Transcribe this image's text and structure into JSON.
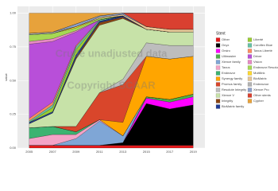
{
  "chart_data": {
    "type": "stacked_area",
    "y_label": "value",
    "legend_title": "Stent",
    "annotations": [
      "Crude unadjusted data",
      "Copyright SCAAR"
    ],
    "x": [
      2005,
      2007,
      2009,
      2011,
      2013,
      2015,
      2017,
      2019
    ],
    "xlim": [
      2004,
      2020
    ],
    "xticks": [
      2005,
      2007,
      2009,
      2011,
      2013,
      2015,
      2017,
      2019
    ],
    "ylim": [
      0,
      1.05
    ],
    "yticks": [
      {
        "value": 0,
        "label": "0.00"
      },
      {
        "value": 0.25,
        "label": "0.25"
      },
      {
        "value": 0.5,
        "label": "0.50"
      },
      {
        "value": 0.75,
        "label": "0.75"
      },
      {
        "value": 1,
        "label": "1.00"
      }
    ],
    "grid": true,
    "series": [
      {
        "name": "Other",
        "color": "#e41a1c",
        "values": [
          0.02,
          0.02,
          0.02,
          0.02,
          0.02,
          0.02,
          0.02,
          0.02
        ]
      },
      {
        "name": "Onyx",
        "color": "#000000",
        "values": [
          0,
          0,
          0,
          0,
          0.02,
          0.31,
          0.27,
          0.3
        ]
      },
      {
        "name": "Orsiro",
        "color": "#ff00ff",
        "values": [
          0,
          0,
          0,
          0,
          0,
          0.04,
          0.05,
          0.06
        ]
      },
      {
        "name": "Ultimaster",
        "color": "#4daf4a",
        "values": [
          0,
          0,
          0,
          0,
          0,
          0.01,
          0.02,
          0.02
        ]
      },
      {
        "name": "Xience family",
        "color": "#7fa6d6",
        "values": [
          0,
          0,
          0.05,
          0.18,
          0.05,
          0,
          0,
          0
        ]
      },
      {
        "name": "Taxus",
        "color": "#f4a3c7",
        "values": [
          0.05,
          0.08,
          0.03,
          0.01,
          0,
          0,
          0,
          0
        ]
      },
      {
        "name": "Endeavor",
        "color": "#3cb371",
        "values": [
          0.08,
          0.06,
          0.02,
          0,
          0,
          0,
          0,
          0
        ]
      },
      {
        "name": "Synergy family",
        "color": "#ffa500",
        "values": [
          0,
          0,
          0,
          0,
          0.1,
          0.3,
          0.3,
          0.28
        ]
      },
      {
        "name": "Promus family",
        "color": "#d9462b",
        "values": [
          0,
          0,
          0.04,
          0.2,
          0.28,
          0,
          0,
          0
        ]
      },
      {
        "name": "Resolute Integrity",
        "color": "#bdbdbd",
        "values": [
          0,
          0,
          0,
          0,
          0.04,
          0.1,
          0.1,
          0.08
        ]
      },
      {
        "name": "Xience V",
        "color": "#c7e2a8",
        "values": [
          0.03,
          0.1,
          0.5,
          0.5,
          0.45,
          0.1,
          0.1,
          0.1
        ]
      },
      {
        "name": "Integrity",
        "color": "#8b4513",
        "values": [
          0,
          0,
          0.01,
          0.02,
          0.01,
          0,
          0,
          0
        ]
      },
      {
        "name": "BioMatrix family",
        "color": "#1f3a93",
        "values": [
          0.01,
          0.01,
          0.02,
          0.01,
          0.01,
          0,
          0,
          0
        ]
      },
      {
        "name": "Liberté",
        "color": "#9acd32",
        "values": [
          0,
          0.03,
          0.04,
          0,
          0,
          0,
          0,
          0
        ]
      },
      {
        "name": "Coroflex Blue",
        "color": "#66c2a5",
        "values": [
          0.01,
          0.02,
          0.02,
          0.01,
          0,
          0,
          0,
          0
        ]
      },
      {
        "name": "Taxus Liberté",
        "color": "#fc8d62",
        "values": [
          0.02,
          0.02,
          0.01,
          0,
          0,
          0,
          0,
          0
        ]
      },
      {
        "name": "Driver",
        "color": "#b84fd9",
        "values": [
          0.55,
          0.45,
          0.1,
          0,
          0,
          0,
          0,
          0
        ]
      },
      {
        "name": "Vision",
        "color": "#e78ac3",
        "values": [
          0.02,
          0.02,
          0.01,
          0,
          0,
          0,
          0,
          0
        ]
      },
      {
        "name": "Endeavor Resolute",
        "color": "#a6d854",
        "values": [
          0.05,
          0.04,
          0.02,
          0.01,
          0,
          0,
          0,
          0
        ]
      },
      {
        "name": "Multilink",
        "color": "#ffd92f",
        "values": [
          0,
          0,
          0.01,
          0,
          0,
          0,
          0,
          0
        ]
      },
      {
        "name": "BioMatrix",
        "color": "#e5c494",
        "values": [
          0,
          0,
          0,
          0.01,
          0.01,
          0.02,
          0.02,
          0.02
        ]
      },
      {
        "name": "Endeavour",
        "color": "#b3b3b3",
        "values": [
          0.01,
          0.01,
          0,
          0,
          0,
          0,
          0,
          0
        ]
      },
      {
        "name": "Xience Pro",
        "color": "#8da0cb",
        "values": [
          0,
          0,
          0.02,
          0.01,
          0.01,
          0,
          0,
          0
        ]
      },
      {
        "name": "Other stents",
        "color": "#d94030",
        "values": [
          0,
          0,
          0,
          0,
          0,
          0.1,
          0.12,
          0.12
        ]
      },
      {
        "name": "Cypher",
        "color": "#e7a23b",
        "values": [
          0.15,
          0.14,
          0.08,
          0.02,
          0,
          0,
          0,
          0
        ]
      }
    ]
  }
}
